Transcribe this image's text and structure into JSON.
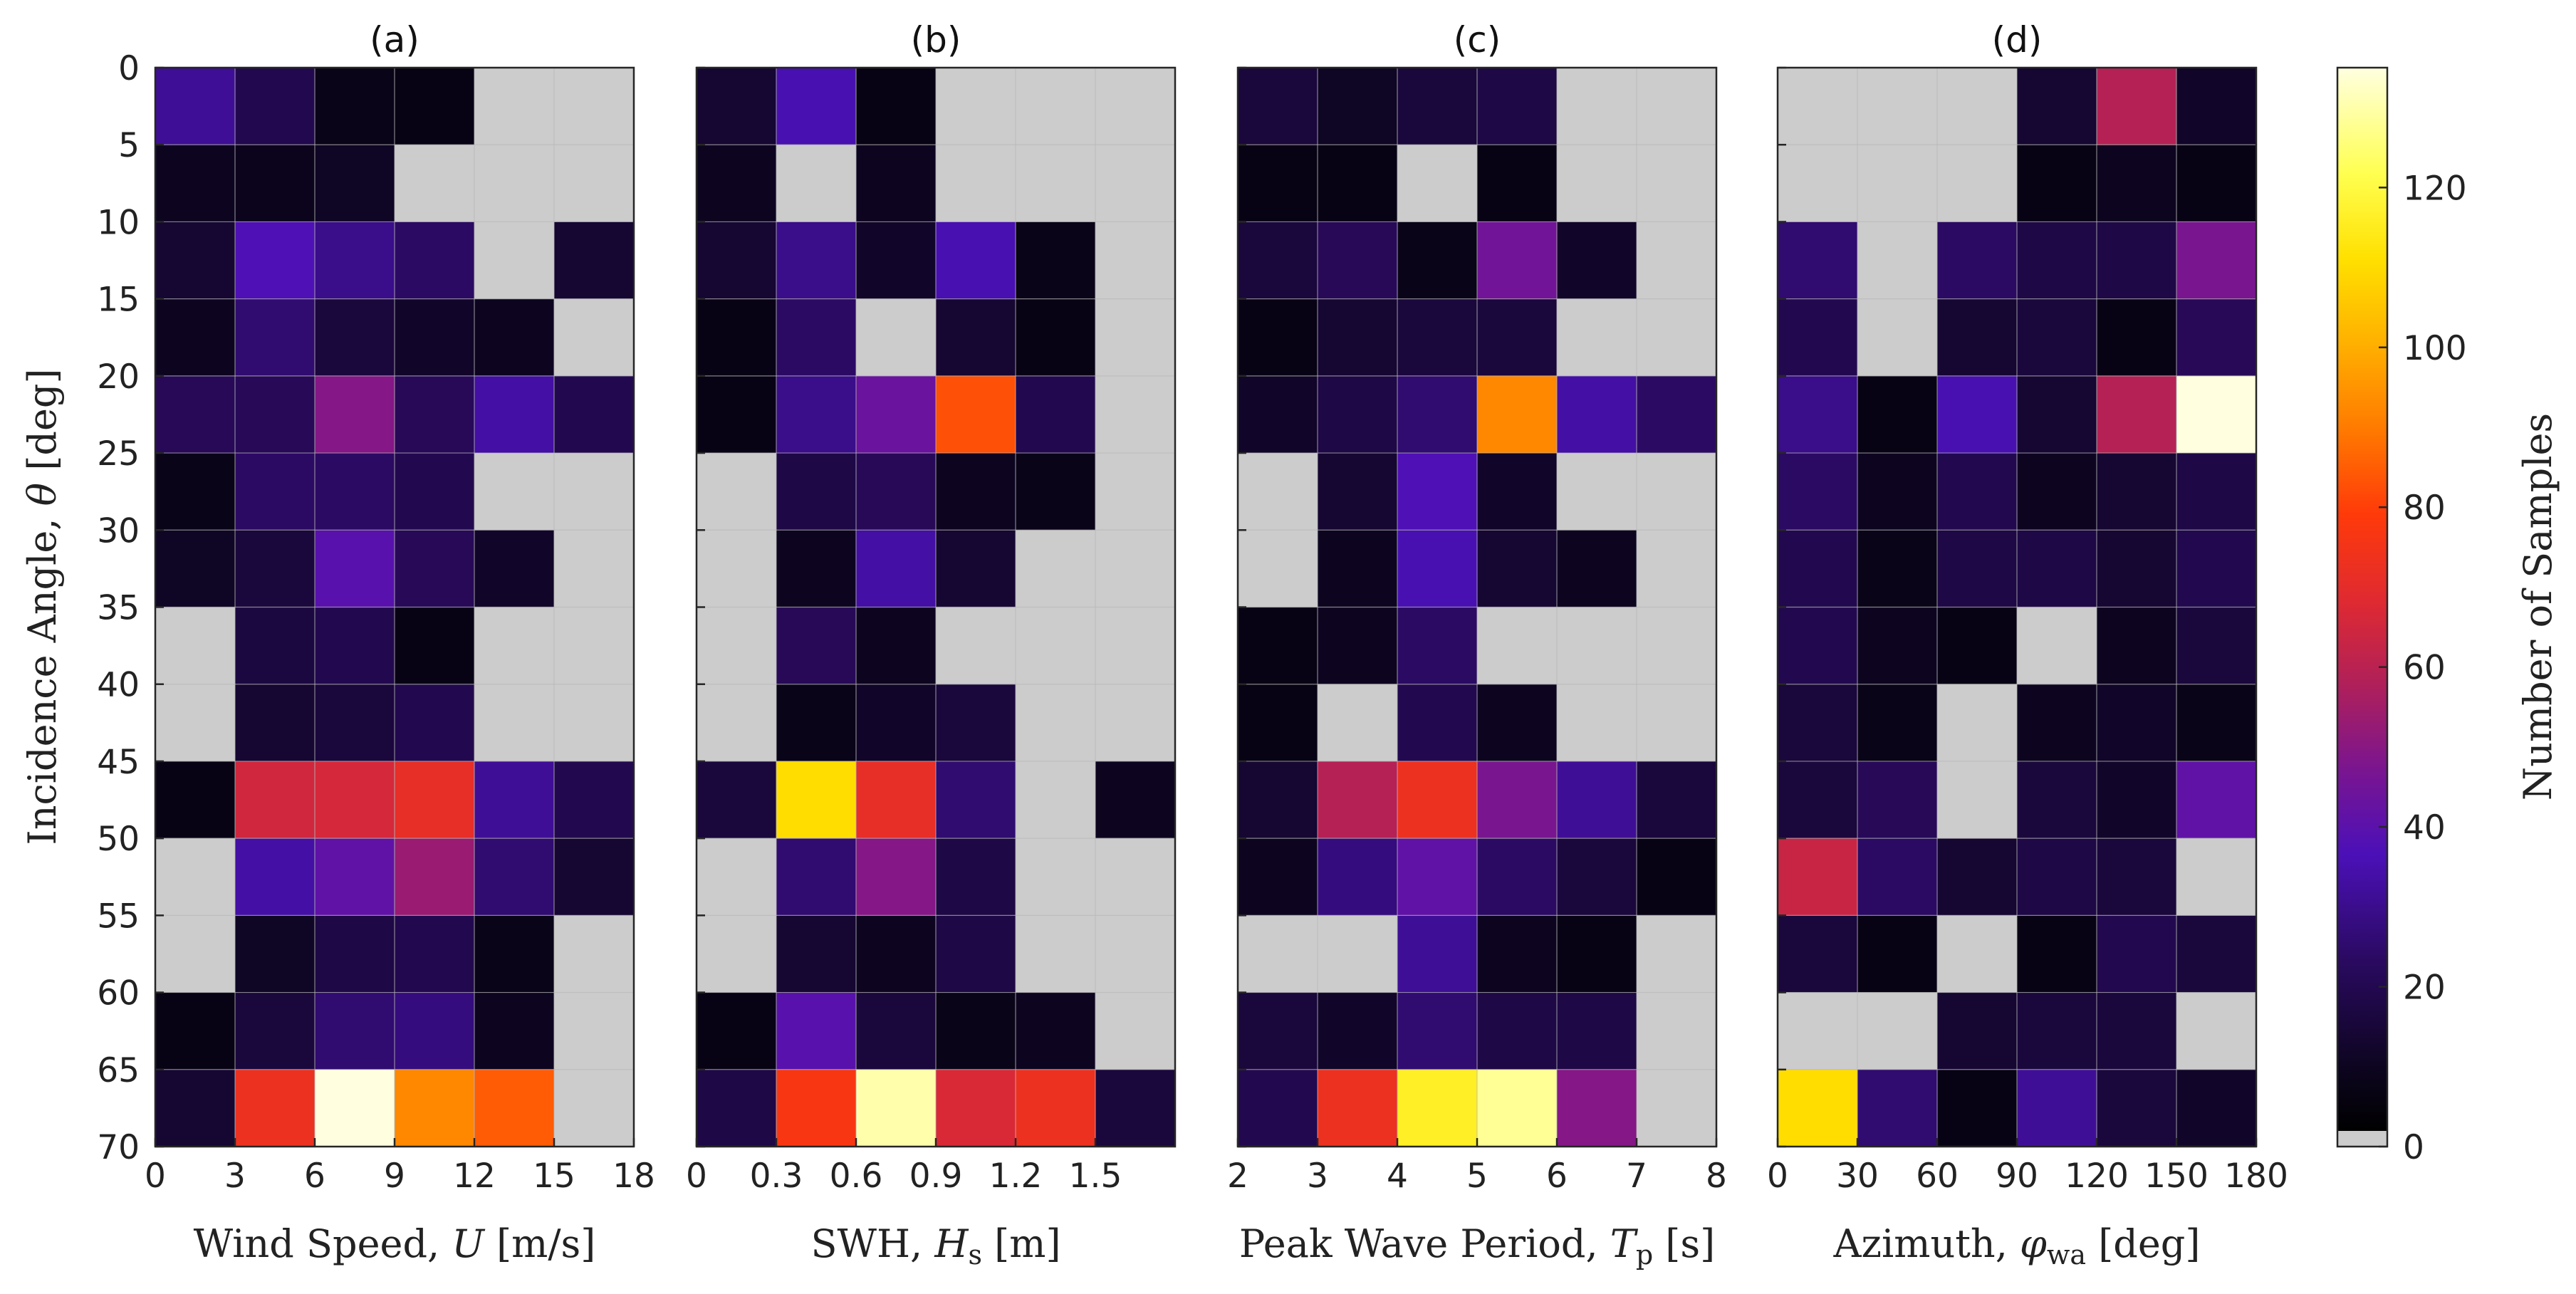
{
  "chart_data": {
    "type": "heatmap",
    "y_label_text": "Incidence Angle, ",
    "y_label_symbol": "θ",
    "y_label_unit": "[deg]",
    "y_ticks": [
      "0",
      "5",
      "10",
      "15",
      "20",
      "25",
      "30",
      "35",
      "40",
      "45",
      "50",
      "55",
      "60",
      "65",
      "70"
    ],
    "ylim": [
      0,
      70
    ],
    "y_bins": [
      0,
      5,
      10,
      15,
      20,
      25,
      30,
      35,
      40,
      45,
      50,
      55,
      60,
      65,
      70
    ],
    "missing_color": "#cccccc",
    "colormap": "hot-to-purple (black-purple-red-orange-yellow-white)",
    "colorbar": {
      "label": "Number of Samples",
      "range": [
        0,
        135
      ],
      "ticks": [
        "0",
        "20",
        "40",
        "60",
        "80",
        "100",
        "120"
      ],
      "tick_values": [
        0,
        20,
        40,
        60,
        80,
        100,
        120
      ]
    },
    "panels": [
      {
        "title": "(a)",
        "x_label_text": "Wind Speed, ",
        "x_label_symbol": "U",
        "x_label_sub": "",
        "x_label_unit": "[m/s]",
        "x_ticks": [
          "0",
          "3",
          "6",
          "9",
          "12",
          "15",
          "18"
        ],
        "x_tick_positions": [
          0,
          1,
          2,
          3,
          4,
          5,
          6
        ],
        "n_cols": 6,
        "values": [
          [
            30,
            18,
            6,
            5,
            null,
            null
          ],
          [
            8,
            7,
            9,
            null,
            null,
            null
          ],
          [
            12,
            36,
            28,
            22,
            null,
            12
          ],
          [
            8,
            24,
            14,
            10,
            8,
            null
          ],
          [
            20,
            20,
            48,
            20,
            32,
            18
          ],
          [
            6,
            22,
            22,
            18,
            null,
            null
          ],
          [
            9,
            14,
            38,
            20,
            10,
            null
          ],
          [
            null,
            15,
            18,
            5,
            null,
            null
          ],
          [
            null,
            12,
            14,
            18,
            null,
            null
          ],
          [
            5,
            64,
            65,
            70,
            30,
            18
          ],
          [
            null,
            32,
            40,
            52,
            24,
            12
          ],
          [
            null,
            9,
            16,
            18,
            6,
            null
          ],
          [
            5,
            14,
            24,
            26,
            8,
            null
          ],
          [
            12,
            72,
            135,
            92,
            84,
            null
          ]
        ]
      },
      {
        "title": "(b)",
        "x_label_text": "SWH, ",
        "x_label_symbol": "H",
        "x_label_sub": "s",
        "x_label_unit": "[m]",
        "x_ticks": [
          "0",
          "0.3",
          "0.6",
          "0.9",
          "1.2",
          "1.5"
        ],
        "x_tick_positions": [
          0,
          1,
          2,
          3,
          4,
          5
        ],
        "n_cols": 6,
        "values": [
          [
            12,
            34,
            5,
            null,
            null,
            null
          ],
          [
            8,
            null,
            8,
            null,
            null,
            null
          ],
          [
            12,
            28,
            10,
            34,
            6,
            null
          ],
          [
            5,
            22,
            null,
            12,
            5,
            null
          ],
          [
            5,
            28,
            42,
            82,
            18,
            null
          ],
          [
            null,
            16,
            20,
            8,
            6,
            null
          ],
          [
            null,
            8,
            32,
            12,
            null,
            null
          ],
          [
            null,
            20,
            8,
            null,
            null,
            null
          ],
          [
            null,
            6,
            10,
            14,
            null,
            null
          ],
          [
            14,
            110,
            70,
            24,
            null,
            8
          ],
          [
            null,
            24,
            48,
            16,
            null,
            null
          ],
          [
            null,
            12,
            8,
            16,
            null,
            null
          ],
          [
            5,
            38,
            14,
            6,
            8,
            null
          ],
          [
            16,
            76,
            130,
            66,
            72,
            14
          ]
        ]
      },
      {
        "title": "(c)",
        "x_label_text": "Peak Wave Period, ",
        "x_label_symbol": "T",
        "x_label_sub": "p",
        "x_label_unit": "[s]",
        "x_ticks": [
          "2",
          "3",
          "4",
          "5",
          "6",
          "7",
          "8"
        ],
        "x_tick_positions": [
          0,
          1,
          2,
          3,
          4,
          5,
          6
        ],
        "n_cols": 6,
        "values": [
          [
            14,
            9,
            14,
            16,
            null,
            null
          ],
          [
            5,
            5,
            null,
            5,
            null,
            null
          ],
          [
            14,
            20,
            6,
            44,
            10,
            null
          ],
          [
            5,
            12,
            14,
            14,
            null,
            null
          ],
          [
            10,
            16,
            24,
            92,
            32,
            22
          ],
          [
            null,
            12,
            36,
            10,
            null,
            null
          ],
          [
            null,
            8,
            34,
            12,
            8,
            null
          ],
          [
            5,
            8,
            22,
            null,
            null,
            null
          ],
          [
            5,
            null,
            18,
            8,
            null,
            null
          ],
          [
            12,
            58,
            72,
            46,
            30,
            14
          ],
          [
            8,
            26,
            40,
            22,
            14,
            5
          ],
          [
            null,
            null,
            30,
            8,
            5,
            null
          ],
          [
            14,
            10,
            24,
            16,
            16,
            null
          ],
          [
            18,
            72,
            116,
            128,
            48,
            null
          ]
        ]
      },
      {
        "title": "(d)",
        "x_label_text": "Azimuth, ",
        "x_label_symbol": "φ",
        "x_label_sub": "wa",
        "x_label_unit": "[deg]",
        "x_ticks": [
          "0",
          "30",
          "60",
          "90",
          "120",
          "150",
          "180"
        ],
        "x_tick_positions": [
          0,
          1,
          2,
          3,
          4,
          5,
          6
        ],
        "n_cols": 6,
        "values": [
          [
            null,
            null,
            null,
            12,
            58,
            10
          ],
          [
            null,
            null,
            null,
            5,
            8,
            5
          ],
          [
            24,
            null,
            22,
            16,
            16,
            46
          ],
          [
            18,
            null,
            12,
            14,
            5,
            20
          ],
          [
            28,
            5,
            34,
            12,
            58,
            135
          ],
          [
            22,
            8,
            18,
            8,
            12,
            16
          ],
          [
            18,
            6,
            16,
            16,
            12,
            18
          ],
          [
            18,
            8,
            5,
            null,
            8,
            14
          ],
          [
            14,
            6,
            null,
            8,
            10,
            6
          ],
          [
            14,
            20,
            null,
            14,
            10,
            40
          ],
          [
            62,
            22,
            12,
            16,
            14,
            null
          ],
          [
            14,
            5,
            null,
            5,
            18,
            14
          ],
          [
            null,
            null,
            12,
            14,
            14,
            null
          ],
          [
            110,
            24,
            5,
            30,
            14,
            10
          ]
        ]
      }
    ]
  }
}
